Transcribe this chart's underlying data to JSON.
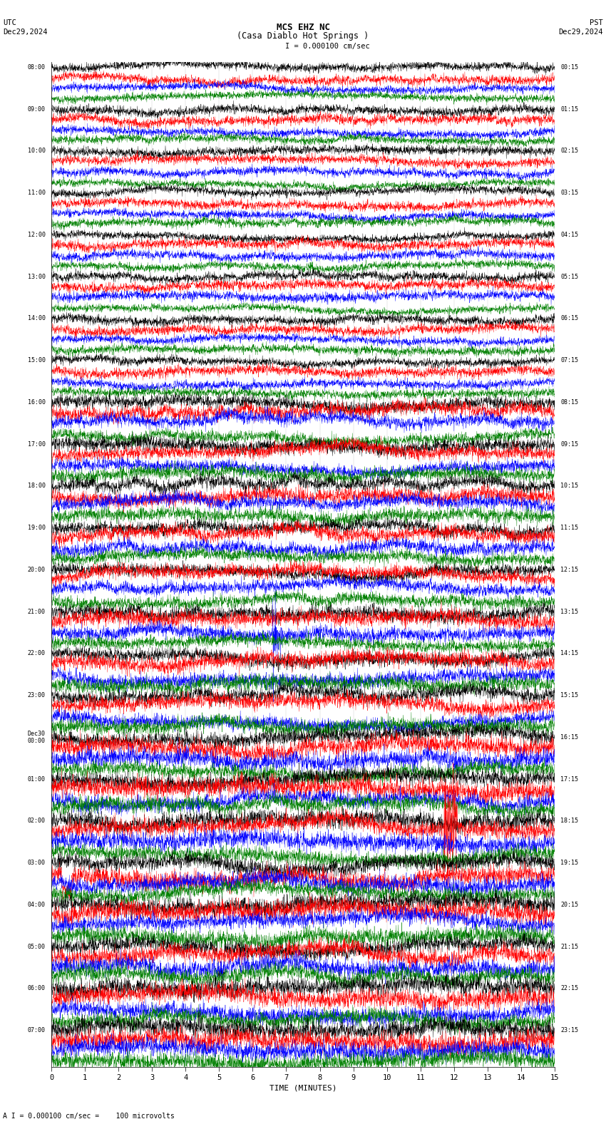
{
  "title_line1": "MCS EHZ NC",
  "title_line2": "(Casa Diablo Hot Springs )",
  "scale_text": "I = 0.000100 cm/sec",
  "bottom_scale_text": "A I = 0.000100 cm/sec =    100 microvolts",
  "left_label_top": "UTC",
  "left_label_bot": "Dec29,2024",
  "right_label_top": "PST",
  "right_label_bot": "Dec29,2024",
  "xlabel": "TIME (MINUTES)",
  "left_times": [
    "08:00",
    "09:00",
    "10:00",
    "11:00",
    "12:00",
    "13:00",
    "14:00",
    "15:00",
    "16:00",
    "17:00",
    "18:00",
    "19:00",
    "20:00",
    "21:00",
    "22:00",
    "23:00",
    "Dec30\n00:00",
    "01:00",
    "02:00",
    "03:00",
    "04:00",
    "05:00",
    "06:00",
    "07:00"
  ],
  "right_times": [
    "00:15",
    "01:15",
    "02:15",
    "03:15",
    "04:15",
    "05:15",
    "06:15",
    "07:15",
    "08:15",
    "09:15",
    "10:15",
    "11:15",
    "12:15",
    "13:15",
    "14:15",
    "15:15",
    "16:15",
    "17:15",
    "18:15",
    "19:15",
    "20:15",
    "21:15",
    "22:15",
    "23:15"
  ],
  "n_hours": 24,
  "traces_per_hour": 4,
  "colors": [
    "black",
    "red",
    "blue",
    "green"
  ],
  "bg_color": "white",
  "fig_width": 8.5,
  "fig_height": 15.84,
  "x_min": 0,
  "x_max": 15,
  "x_ticks": [
    0,
    1,
    2,
    3,
    4,
    5,
    6,
    7,
    8,
    9,
    10,
    11,
    12,
    13,
    14,
    15
  ],
  "seed": 42,
  "amp_early": 0.25,
  "amp_mid": 0.38,
  "amp_late": 0.48,
  "amp_very_late": 0.48
}
